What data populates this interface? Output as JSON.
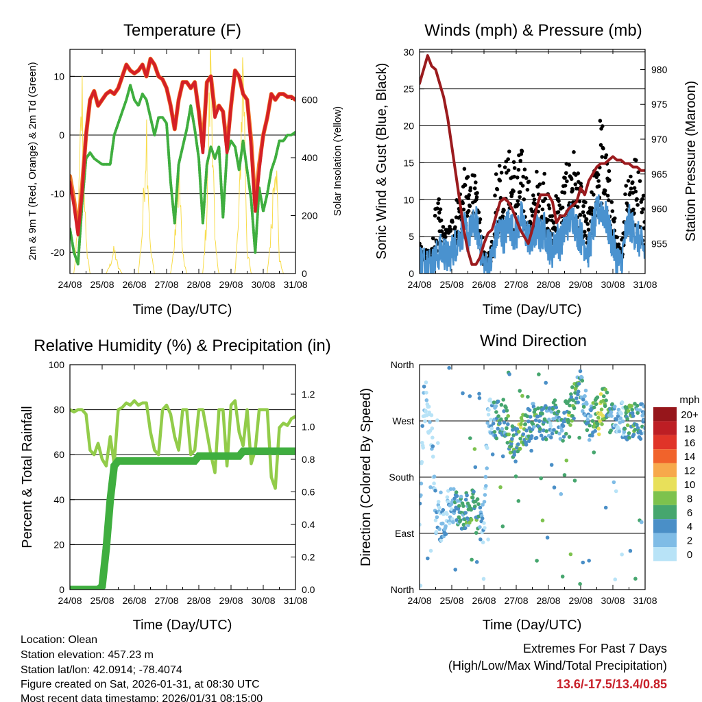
{
  "footer": {
    "location": "Location: Olean",
    "elevation": "Station elevation: 457.23 m",
    "latlon": "Station lat/lon: 42.0914; -78.4074",
    "created": "Figure created on Sat, 2026-01-31, at 08:30 UTC",
    "recent": "Most recent data timestamp: 2026/01/31 08:15:00",
    "extremes_title": "Extremes For Past 7 Days",
    "extremes_sub": "(High/Low/Max Wind/Total Precipitation)",
    "extremes_values": "13.6/-17.5/13.4/0.85",
    "extremes_color": "#c8202a"
  },
  "chart_data": [
    {
      "type": "line",
      "title": "Temperature (F)",
      "xlabel": "Time (Day/UTC)",
      "ylabel": "2m & 9m T (Red, Orange) & 2m Td (Green)",
      "ylabel_right": "Solar Insolation (Yellow)",
      "xticks": [
        "24/08",
        "25/08",
        "26/08",
        "27/08",
        "28/08",
        "29/08",
        "30/08",
        "31/08"
      ],
      "xlim_days": [
        0,
        7
      ],
      "ylim": [
        -23.6,
        14.6
      ],
      "yticks": [
        -20,
        -10,
        0,
        10
      ],
      "ylim_right": [
        0,
        774
      ],
      "yticks_right": [
        0,
        200,
        400,
        600
      ],
      "grid": "horizontal",
      "time_step_days": 0.125,
      "series": [
        {
          "name": "9m T",
          "color": "#f07a2a",
          "values": [
            -7,
            -11,
            -16,
            -9,
            0,
            6,
            7.5,
            5,
            6,
            7,
            7.5,
            7,
            8,
            10,
            12,
            11,
            10.5,
            11,
            12,
            10,
            13,
            12,
            10,
            9.5,
            8,
            5,
            1,
            6,
            9,
            9,
            8,
            9,
            4,
            -2,
            9,
            10,
            4,
            5,
            4,
            -2,
            5,
            11,
            10,
            7,
            6,
            -1,
            -12,
            -5,
            0,
            3,
            7,
            6,
            7,
            7,
            6.5,
            6.5,
            6
          ]
        },
        {
          "name": "2m T",
          "color": "#d42026",
          "values": [
            -8,
            -12,
            -17,
            -10,
            0,
            6,
            7.5,
            5,
            6,
            7,
            7.5,
            7,
            8,
            10,
            12,
            11,
            10.5,
            11,
            12,
            10,
            13,
            12,
            10,
            9.5,
            8,
            5,
            1,
            6,
            9,
            9,
            8,
            9,
            4,
            -3,
            9,
            10,
            3,
            5,
            4,
            -3,
            5,
            11,
            10,
            7,
            6,
            -2,
            -13,
            -6,
            0,
            3,
            7,
            6,
            7,
            7,
            6.5,
            6.5,
            6
          ]
        },
        {
          "name": "2m Td",
          "color": "#3fae3f",
          "values": [
            -16,
            -20,
            -22,
            -12,
            -4,
            -3,
            -4,
            -4.5,
            -5,
            -5,
            -5,
            0,
            2,
            4,
            6,
            8.5,
            6,
            5,
            7,
            6,
            3,
            0,
            3,
            3,
            2,
            -8,
            -15,
            -5,
            -2,
            1,
            5,
            1,
            -4,
            -15,
            -5,
            -2,
            -4,
            -2,
            -14,
            -3,
            -1,
            -2,
            -6,
            -1,
            -6,
            -11,
            -20,
            -9,
            -13,
            -10,
            -6,
            -4,
            -1,
            -1,
            0,
            0,
            0.5
          ]
        },
        {
          "name": "Solar Insolation",
          "axis": "right",
          "color": "#f8dc4a",
          "values": [
            0,
            0,
            150,
            600,
            100,
            0,
            0,
            0,
            0,
            0,
            30,
            80,
            20,
            0,
            0,
            0,
            0,
            0,
            150,
            500,
            80,
            0,
            0,
            0,
            0,
            0,
            100,
            350,
            60,
            0,
            0,
            0,
            0,
            0,
            200,
            760,
            100,
            0,
            0,
            0,
            0,
            0,
            200,
            740,
            80,
            0,
            0,
            0,
            0,
            0,
            150,
            450,
            50,
            0,
            0,
            0,
            0
          ]
        }
      ]
    },
    {
      "type": "scatter",
      "title": "Winds (mph) & Pressure (mb)",
      "xlabel": "Time (Day/UTC)",
      "ylabel": "Sonic Wind & Gust (Blue, Black)",
      "ylabel_right": "Station Pressure (Maroon)",
      "xticks": [
        "24/08",
        "25/08",
        "26/08",
        "27/08",
        "28/08",
        "29/08",
        "30/08",
        "31/08"
      ],
      "xlim_days": [
        0,
        7
      ],
      "ylim": [
        0,
        30.35
      ],
      "yticks": [
        0,
        5,
        10,
        15,
        20,
        25,
        30
      ],
      "ylim_right": [
        950.7,
        982.9
      ],
      "yticks_right": [
        955,
        960,
        965,
        970,
        975,
        980
      ],
      "grid": "horizontal",
      "time_step_days": 0.125,
      "series": [
        {
          "name": "Sonic Wind",
          "color": "#4a92cf",
          "values": [
            2,
            1.5,
            2,
            1,
            2,
            3,
            3,
            2,
            3,
            4,
            5,
            6,
            5,
            6,
            7,
            4,
            1,
            0.5,
            2,
            5,
            6,
            5,
            7,
            6,
            5,
            8,
            6,
            5,
            4,
            6,
            5,
            6,
            4,
            3,
            5,
            4,
            6,
            7,
            8,
            6,
            5,
            4,
            3,
            6,
            8,
            9,
            8,
            6,
            4,
            2,
            1,
            5,
            7,
            6,
            5,
            4,
            3
          ]
        },
        {
          "name": "Gust",
          "color": "#000000",
          "values": [
            4,
            3,
            4,
            3,
            9,
            10,
            6,
            6,
            8,
            10,
            12,
            14,
            13,
            15,
            12,
            8,
            3,
            2,
            6,
            14,
            17,
            15,
            16,
            18,
            14,
            17,
            16,
            13,
            10,
            14,
            12,
            15,
            10,
            8,
            12,
            10,
            14,
            15,
            18,
            14,
            12,
            10,
            8,
            12,
            18,
            22,
            18,
            14,
            10,
            5,
            3,
            12,
            16,
            18,
            15,
            13,
            10
          ]
        },
        {
          "name": "Station Pressure",
          "axis": "right",
          "color": "#9b1b1e",
          "values": [
            978,
            980,
            982,
            980.5,
            980,
            978,
            976,
            973,
            969,
            965,
            961,
            957,
            954,
            952,
            952,
            953,
            955,
            956.5,
            957,
            959,
            961,
            961.5,
            961,
            960,
            958.5,
            957,
            956,
            955,
            957,
            960,
            962,
            962,
            962,
            961,
            958,
            959,
            959,
            960,
            960.5,
            961,
            963,
            962,
            964,
            965,
            966,
            966.5,
            966.5,
            967,
            967.5,
            967,
            967,
            966.5,
            966.5,
            966,
            966,
            965.5,
            965.5
          ]
        }
      ]
    },
    {
      "type": "line",
      "title": "Relative Humidity (%) & Precipitation (in)",
      "xlabel": "Time (Day/UTC)",
      "ylabel": "Percent & Total Rainfall",
      "xticks": [
        "24/08",
        "25/08",
        "26/08",
        "27/08",
        "28/08",
        "29/08",
        "30/08",
        "31/08"
      ],
      "xlim_days": [
        0,
        7
      ],
      "ylim": [
        0,
        100
      ],
      "yticks": [
        0,
        20,
        40,
        60,
        80,
        100
      ],
      "ylim_right": [
        0,
        1.381
      ],
      "yticks_right": [
        "0.0",
        "0.2",
        "0.4",
        "0.6",
        "0.8",
        "1.0",
        "1.2"
      ],
      "grid": "horizontal",
      "time_step_days": 0.125,
      "series": [
        {
          "name": "Relative Humidity",
          "color": "#92cc4a",
          "values": [
            80,
            79,
            80,
            80,
            78,
            62,
            60,
            65,
            58,
            55,
            68,
            56,
            80,
            81,
            83,
            82,
            84,
            82,
            83,
            83,
            70,
            62,
            60,
            80,
            82,
            78,
            68,
            62,
            80,
            80,
            60,
            62,
            80,
            80,
            70,
            60,
            52,
            80,
            80,
            55,
            82,
            84,
            70,
            64,
            80,
            56,
            62,
            80,
            80,
            80,
            50,
            45,
            72,
            74,
            73,
            76,
            77
          ]
        },
        {
          "name": "Total Precipitation",
          "axis": "right",
          "color": "#3fae3f",
          "values": [
            0,
            0,
            0,
            0,
            0,
            0,
            0,
            0,
            0.02,
            0.25,
            0.55,
            0.76,
            0.79,
            0.79,
            0.79,
            0.79,
            0.79,
            0.79,
            0.79,
            0.79,
            0.79,
            0.79,
            0.79,
            0.79,
            0.79,
            0.79,
            0.79,
            0.79,
            0.79,
            0.79,
            0.79,
            0.79,
            0.82,
            0.82,
            0.82,
            0.82,
            0.82,
            0.82,
            0.82,
            0.82,
            0.82,
            0.82,
            0.82,
            0.85,
            0.85,
            0.85,
            0.85,
            0.85,
            0.85,
            0.85,
            0.85,
            0.85,
            0.85,
            0.85,
            0.85,
            0.85,
            0.85
          ]
        }
      ]
    },
    {
      "type": "scatter",
      "title": "Wind Direction",
      "xlabel": "Time (Day/UTC)",
      "ylabel": "Direction (Colored By Speed)",
      "xticks": [
        "24/08",
        "25/08",
        "26/08",
        "27/08",
        "28/08",
        "29/08",
        "30/08",
        "31/08"
      ],
      "xlim_days": [
        0,
        7
      ],
      "ylim_degrees": [
        0,
        360
      ],
      "yticks": [
        {
          "deg": 0,
          "label": "North"
        },
        {
          "deg": 90,
          "label": "East"
        },
        {
          "deg": 180,
          "label": "South"
        },
        {
          "deg": 270,
          "label": "West"
        },
        {
          "deg": 360,
          "label": "North"
        }
      ],
      "grid": "horizontal",
      "time_step_days": 0.125,
      "direction_deg": [
        100,
        300,
        280,
        250,
        120,
        110,
        100,
        130,
        140,
        130,
        125,
        120,
        130,
        135,
        140,
        110,
        100,
        280,
        275,
        270,
        280,
        275,
        260,
        240,
        225,
        240,
        260,
        265,
        270,
        265,
        270,
        275,
        260,
        270,
        275,
        265,
        270,
        280,
        300,
        310,
        330,
        300,
        260,
        270,
        280,
        290,
        300,
        280,
        275,
        275,
        270,
        270,
        270,
        268,
        270,
        268,
        270
      ],
      "speed_series": "Sonic Wind",
      "legend": {
        "title": "mph",
        "placement": "right",
        "bins": [
          {
            "label": "20+",
            "color": "#96161b"
          },
          {
            "label": "18",
            "color": "#bd1e24"
          },
          {
            "label": "16",
            "color": "#e03428"
          },
          {
            "label": "14",
            "color": "#f1632b"
          },
          {
            "label": "12",
            "color": "#f7a94b"
          },
          {
            "label": "10",
            "color": "#e8e05a"
          },
          {
            "label": "8",
            "color": "#7dc24d"
          },
          {
            "label": "6",
            "color": "#46a66e"
          },
          {
            "label": "4",
            "color": "#4a8fc7"
          },
          {
            "label": "2",
            "color": "#7fbce6"
          },
          {
            "label": "0",
            "color": "#b8e3f7"
          }
        ]
      }
    }
  ]
}
